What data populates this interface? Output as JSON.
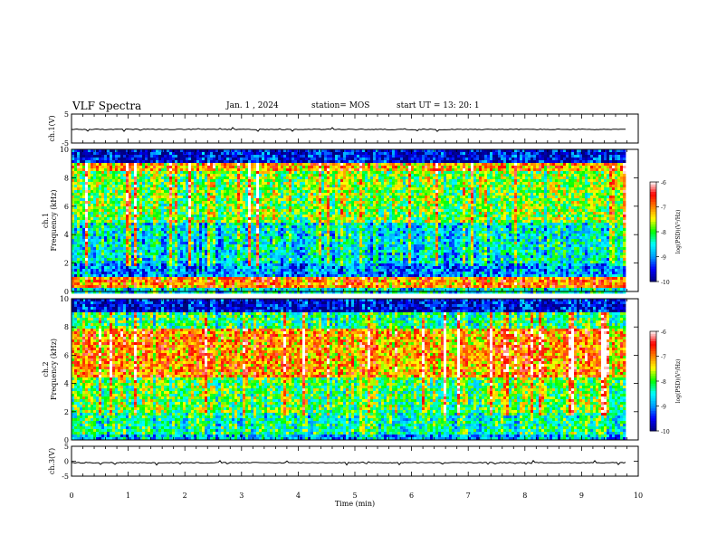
{
  "header": {
    "title": "VLF Spectra",
    "date": "Jan. 1 , 2024",
    "station": "station= MOS",
    "start_ut": "start UT = 13: 20: 1"
  },
  "colorbar": {
    "ticks": [
      "-6",
      "-7",
      "-8",
      "-9",
      "-10"
    ],
    "label": "log(PSD)(V²/Hz)",
    "colors": [
      "#000080",
      "#0000ff",
      "#00a0ff",
      "#00ffff",
      "#00ff00",
      "#ffff00",
      "#ff8000",
      "#ff0000",
      "#ffffff"
    ]
  },
  "chart_data": [
    {
      "type": "line",
      "panel": "ch1-waveform",
      "ylabel": "ch.1(V)",
      "ylim": [
        -5,
        5
      ],
      "yticks": [
        "5",
        "-5"
      ],
      "xlim": [
        0,
        10
      ],
      "series": [
        {
          "x": [
            0,
            9.8
          ],
          "values": [
            -0.3,
            -0.3
          ]
        }
      ]
    },
    {
      "type": "heatmap",
      "panel": "ch1-spectrogram",
      "ylabel": "ch.1 Frequency (kHz)",
      "ylim": [
        0,
        10
      ],
      "yticks": [
        "0",
        "2",
        "4",
        "6",
        "8",
        "10"
      ],
      "xlim": [
        0,
        10
      ],
      "data_xmax": 9.8,
      "zlim": [
        -10,
        -6
      ],
      "zlabel": "log(PSD)(V²/Hz)",
      "band_profile": [
        {
          "f": [
            0,
            0.3
          ],
          "z": -8.5
        },
        {
          "f": [
            0.3,
            1.2
          ],
          "z": -7.0
        },
        {
          "f": [
            1.2,
            2.0
          ],
          "z": -9.0
        },
        {
          "f": [
            2.0,
            5.0
          ],
          "z": -8.6
        },
        {
          "f": [
            5.0,
            8.5
          ],
          "z": -7.9
        },
        {
          "f": [
            8.5,
            9.2
          ],
          "z": -7.2
        },
        {
          "f": [
            9.2,
            10
          ],
          "z": -9.6
        }
      ]
    },
    {
      "type": "heatmap",
      "panel": "ch2-spectrogram",
      "ylabel": "ch.2 Frequency (kHz)",
      "ylim": [
        0,
        10
      ],
      "yticks": [
        "0",
        "2",
        "4",
        "6",
        "8",
        "10"
      ],
      "xlim": [
        0,
        10
      ],
      "data_xmax": 9.8,
      "zlim": [
        -10,
        -6
      ],
      "zlabel": "log(PSD)(V²/Hz)",
      "band_profile": [
        {
          "f": [
            0,
            0.5
          ],
          "z": -8.8
        },
        {
          "f": [
            0.5,
            2.0
          ],
          "z": -8.3
        },
        {
          "f": [
            2.0,
            4.5
          ],
          "z": -8.0
        },
        {
          "f": [
            4.5,
            8.0
          ],
          "z": -7.1
        },
        {
          "f": [
            8.0,
            9.2
          ],
          "z": -8.2
        },
        {
          "f": [
            9.2,
            10
          ],
          "z": -9.6
        }
      ]
    },
    {
      "type": "line",
      "panel": "ch3-waveform",
      "ylabel": "ch.3(V)",
      "ylim": [
        -5,
        5
      ],
      "yticks": [
        "5",
        "0",
        "-5"
      ],
      "xlim": [
        0,
        10
      ],
      "series": [
        {
          "x": [
            0,
            9.8
          ],
          "values": [
            -0.5,
            -0.5
          ]
        }
      ]
    }
  ],
  "x_axis": {
    "label": "Time (min)",
    "ticks": [
      "0",
      "1",
      "2",
      "3",
      "4",
      "5",
      "6",
      "7",
      "8",
      "9",
      "10"
    ]
  }
}
